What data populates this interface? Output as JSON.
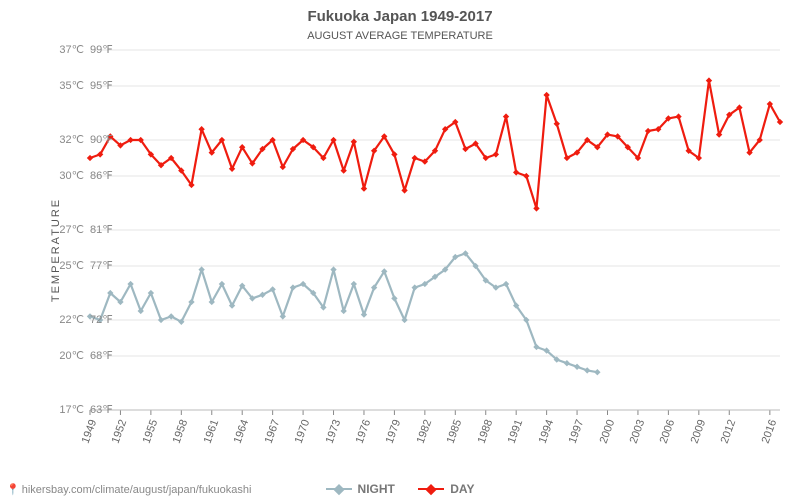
{
  "title": "Fukuoka Japan 1949-2017",
  "subtitle": "AUGUST AVERAGE TEMPERATURE",
  "ylabel": "TEMPERATURE",
  "footer_url": "hikersbay.com/climate/august/japan/fukuokashi",
  "legend": {
    "night": "NIGHT",
    "day": "DAY"
  },
  "chart": {
    "type": "line",
    "background_color": "#ffffff",
    "grid_color": "#e4e4e4",
    "tick_color": "#888888",
    "title_fontsize": 15,
    "subtitle_fontsize": 11,
    "label_fontsize": 11,
    "tick_fontsize": 11,
    "line_width_day": 2.2,
    "line_width_night": 2.2,
    "marker_size": 4.5,
    "marker_style": "diamond",
    "y_c": {
      "min": 17,
      "max": 37,
      "ticks": [
        17,
        20,
        22,
        25,
        27,
        30,
        32,
        35,
        37
      ],
      "labels": [
        "17℃",
        "20℃",
        "22℃",
        "25℃",
        "27℃",
        "30℃",
        "32℃",
        "35℃",
        "37℃"
      ]
    },
    "y_f": {
      "labels": [
        "63℉",
        "68℉",
        "72℉",
        "77℉",
        "81℉",
        "86℉",
        "90℉",
        "95℉",
        "99℉"
      ]
    },
    "x_ticks": [
      1949,
      1952,
      1955,
      1958,
      1961,
      1964,
      1967,
      1970,
      1973,
      1976,
      1979,
      1982,
      1985,
      1988,
      1991,
      1994,
      1997,
      2000,
      2003,
      2006,
      2009,
      2012,
      2016
    ],
    "x_range": [
      1949,
      2017
    ],
    "series": {
      "day": {
        "color": "#ef1c0f",
        "years": [
          1949,
          1950,
          1951,
          1952,
          1953,
          1954,
          1955,
          1956,
          1957,
          1958,
          1959,
          1960,
          1961,
          1962,
          1963,
          1964,
          1965,
          1966,
          1967,
          1968,
          1969,
          1970,
          1971,
          1972,
          1973,
          1974,
          1975,
          1976,
          1977,
          1978,
          1979,
          1980,
          1981,
          1982,
          1983,
          1984,
          1985,
          1986,
          1987,
          1988,
          1989,
          1990,
          1991,
          1992,
          1993,
          1994,
          1995,
          1996,
          1997,
          1998,
          1999,
          2000,
          2001,
          2002,
          2003,
          2004,
          2005,
          2006,
          2007,
          2008,
          2009,
          2010,
          2011,
          2012,
          2013,
          2014,
          2015,
          2016,
          2017
        ],
        "values": [
          31.0,
          31.2,
          32.2,
          31.7,
          32.0,
          32.0,
          31.2,
          30.6,
          31.0,
          30.3,
          29.5,
          32.6,
          31.3,
          32.0,
          30.4,
          31.6,
          30.7,
          31.5,
          32.0,
          30.5,
          31.5,
          32.0,
          31.6,
          31.0,
          32.0,
          30.3,
          31.9,
          29.3,
          31.4,
          32.2,
          31.2,
          29.2,
          31.0,
          30.8,
          31.4,
          32.6,
          33.0,
          31.5,
          31.8,
          31.0,
          31.2,
          33.3,
          30.2,
          30.0,
          28.2,
          34.5,
          32.9,
          31.0,
          31.3,
          32.0,
          31.6,
          32.3,
          32.2,
          31.6,
          31.0,
          32.5,
          32.6,
          33.2,
          33.3,
          31.4,
          31.0,
          35.3,
          32.3,
          33.4,
          33.8,
          31.3,
          32.0,
          34.0,
          33.0
        ]
      },
      "night": {
        "color": "#9eb8c1",
        "years": [
          1949,
          1950,
          1951,
          1952,
          1953,
          1954,
          1955,
          1956,
          1957,
          1958,
          1959,
          1960,
          1961,
          1962,
          1963,
          1964,
          1965,
          1966,
          1967,
          1968,
          1969,
          1970,
          1971,
          1972,
          1973,
          1974,
          1975,
          1976,
          1977,
          1978,
          1979,
          1980,
          1981,
          1982,
          1983,
          1984,
          1985,
          1986,
          1987,
          1988,
          1989,
          1990,
          1991,
          1992,
          1993,
          1994,
          1995,
          1996,
          1997,
          1998,
          1999
        ],
        "values": [
          22.2,
          22.0,
          23.5,
          23.0,
          24.0,
          22.5,
          23.5,
          22.0,
          22.2,
          21.9,
          23.0,
          24.8,
          23.0,
          24.0,
          22.8,
          23.9,
          23.2,
          23.4,
          23.7,
          22.2,
          23.8,
          24.0,
          23.5,
          22.7,
          24.8,
          22.5,
          24.0,
          22.3,
          23.8,
          24.7,
          23.2,
          22.0,
          23.8,
          24.0,
          24.4,
          24.8,
          25.5,
          25.7,
          25.0,
          24.2,
          23.8,
          24.0,
          22.8,
          22.0,
          20.5,
          20.3,
          19.8,
          19.6,
          19.4,
          19.2,
          19.1
        ]
      }
    }
  }
}
